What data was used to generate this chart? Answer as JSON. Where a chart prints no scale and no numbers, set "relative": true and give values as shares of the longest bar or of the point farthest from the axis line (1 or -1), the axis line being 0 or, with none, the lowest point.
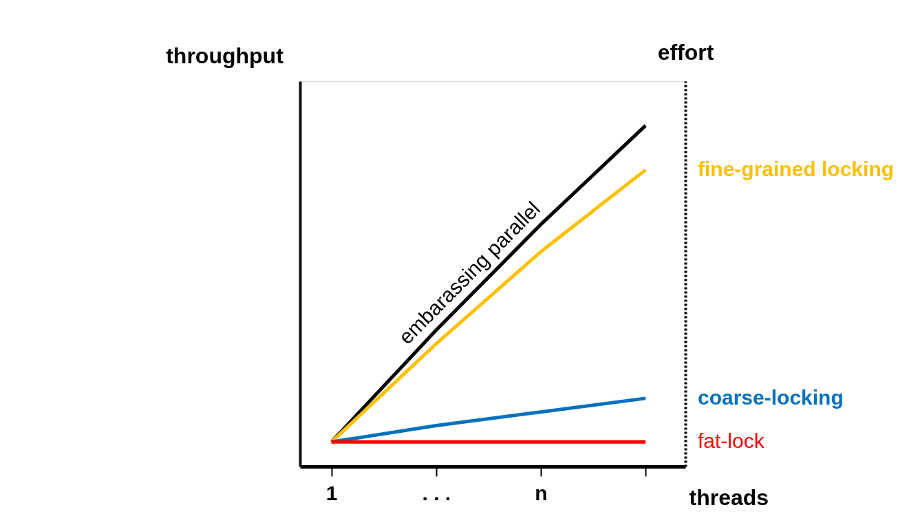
{
  "chart_data": {
    "type": "line",
    "relative": true,
    "xlabel": "threads",
    "ylabel": "throughput",
    "y2label": "effort",
    "categories": [
      "1",
      ". . .",
      "n",
      null
    ],
    "series": [
      {
        "name": "embarassing parallel",
        "color": "#000000",
        "values": [
          0.072,
          0.4,
          0.71,
          1
        ]
      },
      {
        "name": "fine-grained locking",
        "color": "#ffc000",
        "values": [
          0.072,
          0.36,
          0.63,
          0.87
        ]
      },
      {
        "name": "coarse-locking",
        "color": "#0070c0",
        "values": [
          0.072,
          0.12,
          0.16,
          0.2
        ]
      },
      {
        "name": "fat-lock",
        "color": "#ff0000",
        "values": [
          0.072,
          0.072,
          0.072,
          0.072
        ]
      }
    ],
    "legend": "right",
    "grid": false,
    "line_style": "solid",
    "marker": "none"
  }
}
